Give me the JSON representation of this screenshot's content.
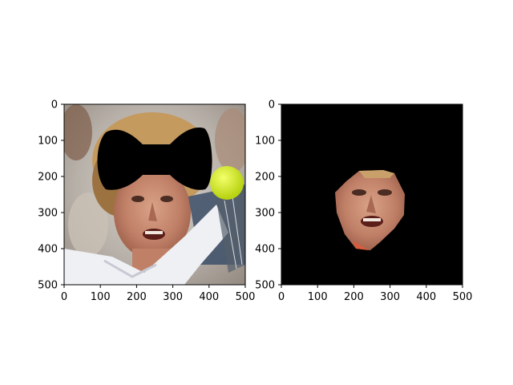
{
  "figure": {
    "background": "#ffffff"
  },
  "colors": {
    "frame": "#000000",
    "mask": "#000000"
  },
  "chart_data": [
    {
      "type": "image",
      "description_of_content": "photo with bow-tie shaped black mask over upper face/forehead",
      "xlim": [
        0,
        500
      ],
      "ylim": [
        500,
        0
      ],
      "xticks": [
        0,
        100,
        200,
        300,
        400,
        500
      ],
      "yticks": [
        0,
        100,
        200,
        300,
        400,
        500
      ],
      "xtick_labels": [
        "0",
        "100",
        "200",
        "300",
        "400",
        "500"
      ],
      "ytick_labels": [
        "0",
        "100",
        "200",
        "300",
        "400",
        "500"
      ],
      "mask_shape": "bow-tie",
      "mask_color": "#000000"
    },
    {
      "type": "image",
      "description_of_content": "black background with cropped face region only",
      "xlim": [
        0,
        500
      ],
      "ylim": [
        500,
        0
      ],
      "xticks": [
        0,
        100,
        200,
        300,
        400,
        500
      ],
      "yticks": [
        0,
        100,
        200,
        300,
        400,
        500
      ],
      "xtick_labels": [
        "0",
        "100",
        "200",
        "300",
        "400",
        "500"
      ],
      "ytick_labels": [
        "0",
        "100",
        "200",
        "300",
        "400",
        "500"
      ],
      "background_color": "#000000"
    }
  ]
}
